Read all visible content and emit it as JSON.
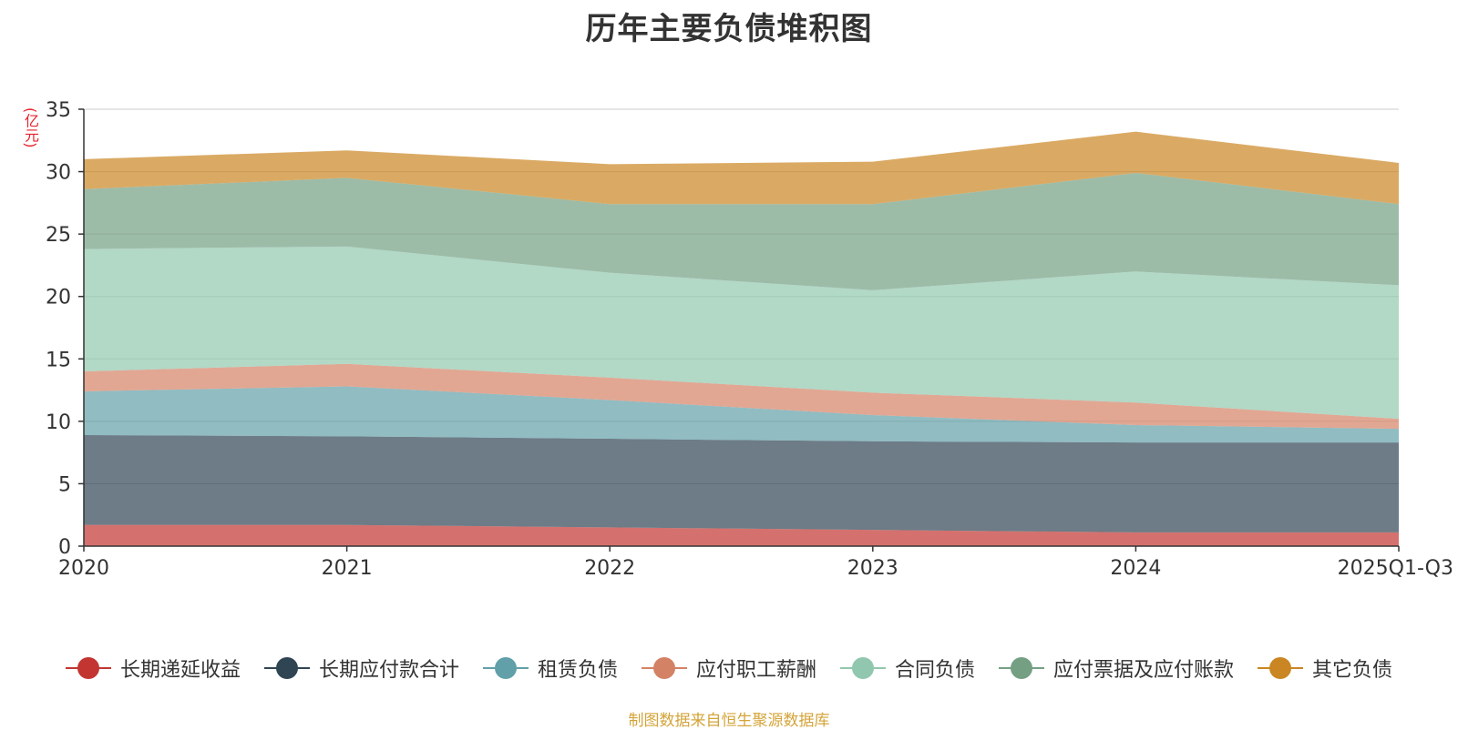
{
  "chart_data": {
    "type": "area",
    "stacked": true,
    "title": "历年主要负债堆积图",
    "ylabel": "(亿元)",
    "xlabel": "",
    "ylim": [
      0,
      35
    ],
    "yticks": [
      0,
      5,
      10,
      15,
      20,
      25,
      30,
      35
    ],
    "categories": [
      "2020",
      "2021",
      "2022",
      "2023",
      "2024",
      "2025Q1-Q3"
    ],
    "series": [
      {
        "name": "长期递延收益",
        "color": "#c23531",
        "values": [
          1.7,
          1.7,
          1.5,
          1.3,
          1.1,
          1.1
        ]
      },
      {
        "name": "长期应付款合计",
        "color": "#2f4554",
        "values": [
          7.2,
          7.1,
          7.1,
          7.1,
          7.2,
          7.2
        ]
      },
      {
        "name": "租赁负债",
        "color": "#61a0a8",
        "values": [
          3.5,
          4.0,
          3.1,
          2.1,
          1.4,
          1.1
        ]
      },
      {
        "name": "应付职工薪酬",
        "color": "#d48265",
        "values": [
          1.6,
          1.8,
          1.8,
          1.8,
          1.8,
          0.8
        ]
      },
      {
        "name": "合同负债",
        "color": "#91c7ae",
        "values": [
          9.8,
          9.4,
          8.4,
          8.2,
          10.5,
          10.7
        ]
      },
      {
        "name": "应付票据及应付账款",
        "color": "#749f83",
        "values": [
          4.8,
          5.5,
          5.5,
          6.9,
          7.9,
          6.5
        ]
      },
      {
        "name": "其它负债",
        "color": "#ca8622",
        "values": [
          2.4,
          2.2,
          3.2,
          3.4,
          3.3,
          3.3
        ]
      }
    ]
  },
  "source_note": "制图数据来自恒生聚源数据库"
}
